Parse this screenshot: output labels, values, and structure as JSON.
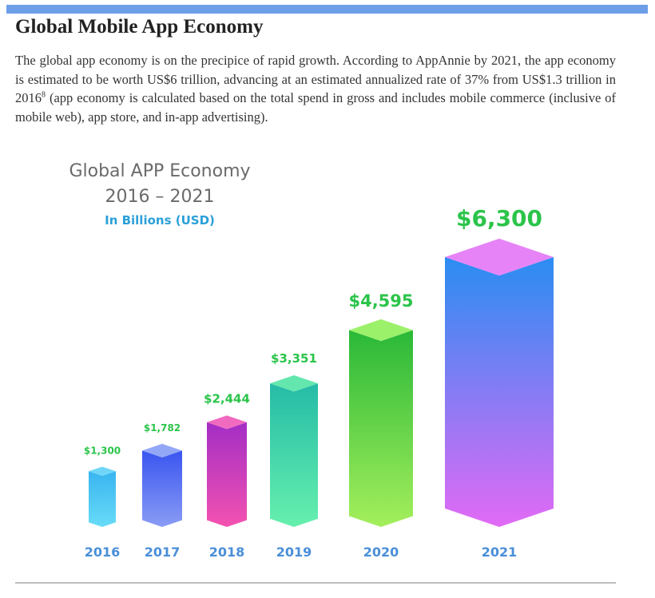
{
  "article": {
    "heading": "Global Mobile App Economy",
    "text_before_ref": "The global app economy is on the precipice of rapid growth. According to AppAnnie by 2021, the app economy is estimated to be worth US$6 trillion, advancing at an estimated annualized rate of 37% from US$1.3 trillion in 2016",
    "footnote_ref": "8",
    "text_after_ref": " (app economy is calculated based on the total spend in gross and includes mobile commerce (inclusive of mobile web), app store, and in-app advertising)."
  },
  "chart_data": {
    "type": "bar",
    "title": "Global APP Economy",
    "subtitle": "2016 – 2021",
    "unit_label": "In Billions (USD)",
    "categories": [
      "2016",
      "2017",
      "2018",
      "2019",
      "2020",
      "2021"
    ],
    "values": [
      1300,
      1782,
      2444,
      3351,
      4595,
      6300
    ],
    "value_labels": [
      "$1,300",
      "$1,782",
      "$2,444",
      "$3,351",
      "$4,595",
      "$6,300"
    ],
    "colors": [
      {
        "top": "#6fd6f7",
        "front_top": "#39b4f0",
        "front_bottom": "#68dcf7"
      },
      {
        "top": "#93a7f7",
        "front_top": "#3a55f0",
        "front_bottom": "#8a9cf5"
      },
      {
        "top": "#f06abf",
        "front_top": "#a32ec5",
        "front_bottom": "#f452b0"
      },
      {
        "top": "#63e7ae",
        "front_top": "#25bba7",
        "front_bottom": "#66f0ae"
      },
      {
        "top": "#9cf16a",
        "front_top": "#2ab838",
        "front_bottom": "#a4ef5c"
      },
      {
        "top": "#e683f7",
        "front_top": "#2a8df2",
        "front_bottom": "#e26af5"
      }
    ],
    "label_color": "#2bc44a",
    "axis_label_color": "#4a8fd8",
    "grid": false,
    "legend": "none"
  }
}
